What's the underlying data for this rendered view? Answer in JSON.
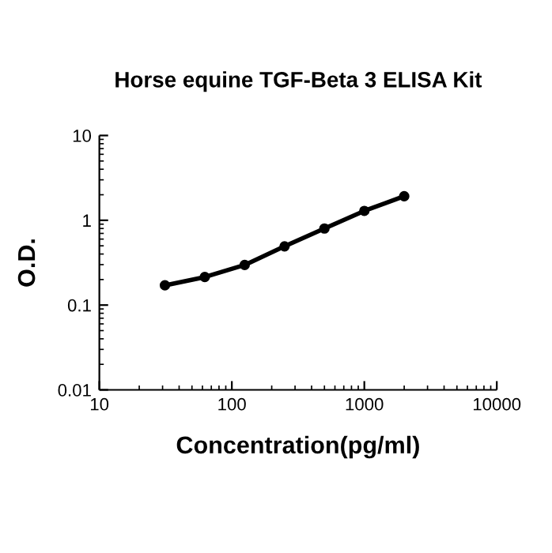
{
  "chart_data": {
    "type": "line",
    "title": "Horse equine TGF-Beta 3 ELISA Kit",
    "xlabel": "Concentration(pg/ml)",
    "ylabel": "O.D.",
    "x": [
      31.25,
      62.5,
      125,
      250,
      500,
      1000,
      2000
    ],
    "series": [
      {
        "color": "#000000",
        "values": [
          0.171,
          0.214,
          0.297,
          0.493,
          0.8,
          1.29,
          1.92
        ]
      }
    ],
    "log": "xy",
    "xlim": [
      10,
      10000
    ],
    "ylim": [
      0.01,
      10
    ],
    "xticks": [
      10,
      100,
      1000,
      10000
    ],
    "yticks": [
      0.01,
      0.1,
      1,
      10
    ],
    "marker": "circle",
    "line_style": "solid",
    "grid": false,
    "legend": false
  }
}
